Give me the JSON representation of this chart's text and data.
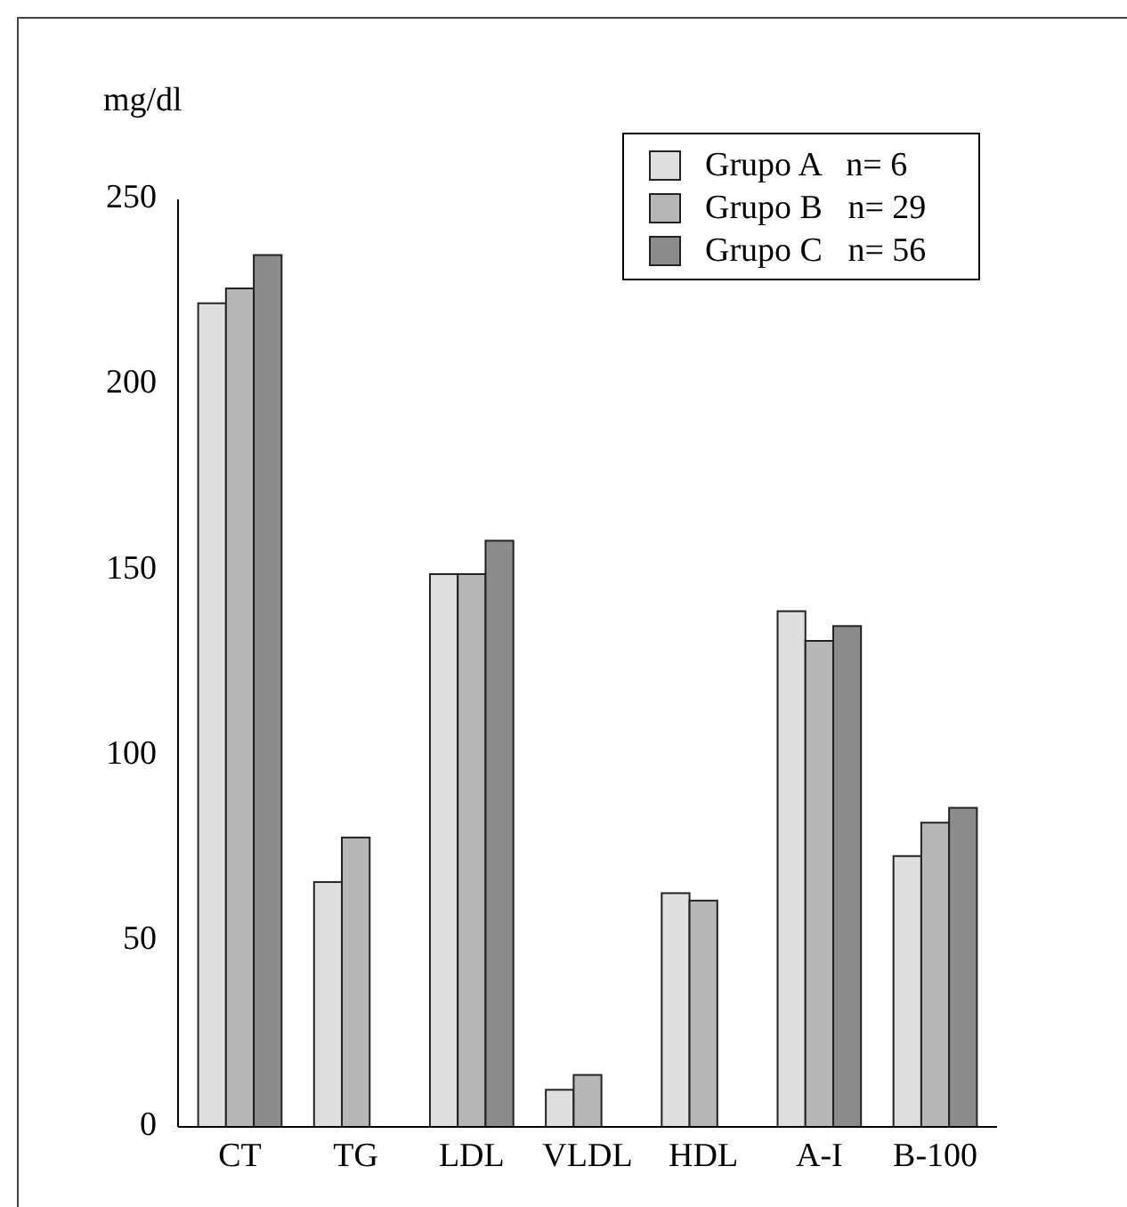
{
  "chart_data": {
    "type": "bar",
    "ylabel": "mg/dl",
    "categories": [
      "CT",
      "TG",
      "LDL",
      "VLDL",
      "HDL",
      "A-I",
      "B-100"
    ],
    "series": [
      {
        "name": "Grupo A   n= 6",
        "color": "#dfdfdf",
        "values": [
          222,
          66,
          149,
          10,
          63,
          139,
          73
        ]
      },
      {
        "name": "Grupo B   n= 29",
        "color": "#b7b7b7",
        "values": [
          226,
          78,
          149,
          14,
          61,
          131,
          82
        ]
      },
      {
        "name": "Grupo C   n= 56",
        "color": "#8c8c8c",
        "values": [
          235,
          null,
          158,
          null,
          null,
          135,
          86
        ]
      }
    ],
    "ylim": [
      0,
      250
    ],
    "yticks": [
      0,
      50,
      100,
      150,
      200,
      250
    ],
    "grid": false,
    "legend": "top right"
  }
}
